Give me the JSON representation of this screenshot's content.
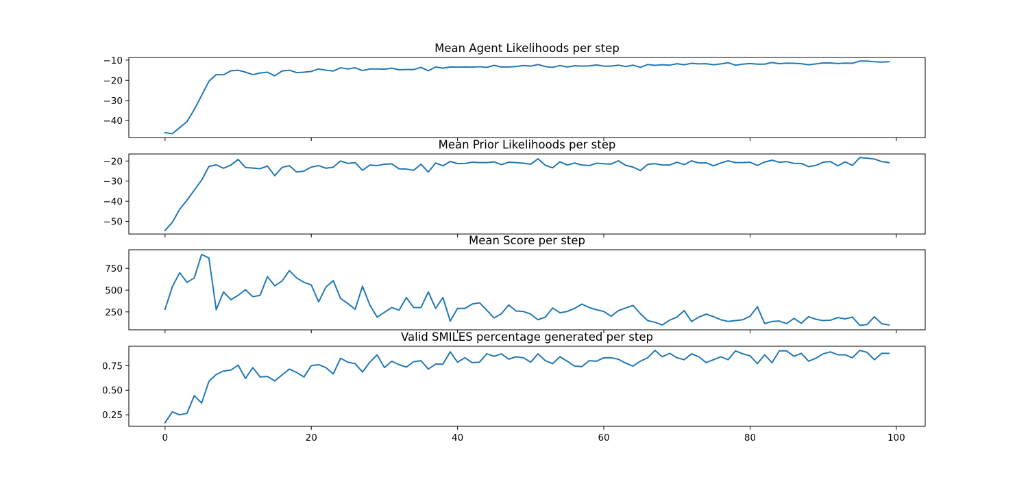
{
  "chart_data": [
    {
      "type": "line",
      "title": "Mean Agent Likelihoods per step",
      "color": "#1f77b4",
      "x": [
        0,
        1,
        2,
        3,
        4,
        5,
        6,
        7,
        8,
        9,
        10,
        11,
        12,
        13,
        14,
        15,
        16,
        17,
        18,
        19,
        20,
        21,
        22,
        23,
        24,
        25,
        26,
        27,
        28,
        29,
        30,
        31,
        32,
        33,
        34,
        35,
        36,
        37,
        38,
        39,
        40,
        41,
        42,
        43,
        44,
        45,
        46,
        47,
        48,
        49,
        50,
        51,
        52,
        53,
        54,
        55,
        56,
        57,
        58,
        59,
        60,
        61,
        62,
        63,
        64,
        65,
        66,
        67,
        68,
        69,
        70,
        71,
        72,
        73,
        74,
        75,
        76,
        77,
        78,
        79,
        80,
        81,
        82,
        83,
        84,
        85,
        86,
        87,
        88,
        89,
        90,
        91,
        92,
        93,
        94,
        95,
        96,
        97,
        98,
        99
      ],
      "values": [
        -46,
        -46.5,
        -43.5,
        -40.5,
        -34.5,
        -27.5,
        -20.5,
        -17.2,
        -17.3,
        -15.3,
        -15,
        -16,
        -17.2,
        -16.4,
        -16,
        -17.8,
        -15.4,
        -15,
        -16.2,
        -16,
        -15.6,
        -14.4,
        -15,
        -15.4,
        -13.8,
        -14.4,
        -13.8,
        -15.2,
        -14.4,
        -14.4,
        -14.5,
        -14,
        -14.8,
        -14.7,
        -14.7,
        -13.6,
        -15.3,
        -13.4,
        -14,
        -13.4,
        -13.5,
        -13.4,
        -13.5,
        -13.3,
        -13.6,
        -12.6,
        -13.4,
        -13.4,
        -13.2,
        -12.7,
        -13,
        -12.2,
        -13.2,
        -13.6,
        -12.7,
        -13.4,
        -12.8,
        -13,
        -12.9,
        -12.4,
        -13,
        -13,
        -12.5,
        -13.2,
        -12.5,
        -13.6,
        -12.2,
        -12.6,
        -12.3,
        -12.5,
        -11.8,
        -12.3,
        -11.6,
        -11.9,
        -11.8,
        -12.3,
        -11.9,
        -11.3,
        -12.5,
        -12,
        -11.7,
        -12,
        -12,
        -11.2,
        -11.8,
        -11.5,
        -11.6,
        -11.8,
        -12.3,
        -11.9,
        -11.4,
        -11.4,
        -11.7,
        -11.5,
        -11.6,
        -10.5,
        -10.5,
        -10.8,
        -11,
        -10.8
      ],
      "xlim": [
        -4.95,
        103.95
      ],
      "xticks": [
        0,
        20,
        40,
        60,
        80,
        100
      ],
      "ylim": [
        -48.4,
        -8.7
      ],
      "yticks": [
        {
          "value": -40,
          "label": "−40"
        },
        {
          "value": -30,
          "label": "−30"
        },
        {
          "value": -20,
          "label": "−20"
        },
        {
          "value": -10,
          "label": "−10"
        }
      ]
    },
    {
      "type": "line",
      "title": "Mean Prior Likelihoods per step",
      "color": "#1f77b4",
      "x": [
        0,
        1,
        2,
        3,
        4,
        5,
        6,
        7,
        8,
        9,
        10,
        11,
        12,
        13,
        14,
        15,
        16,
        17,
        18,
        19,
        20,
        21,
        22,
        23,
        24,
        25,
        26,
        27,
        28,
        29,
        30,
        31,
        32,
        33,
        34,
        35,
        36,
        37,
        38,
        39,
        40,
        41,
        42,
        43,
        44,
        45,
        46,
        47,
        48,
        49,
        50,
        51,
        52,
        53,
        54,
        55,
        56,
        57,
        58,
        59,
        60,
        61,
        62,
        63,
        64,
        65,
        66,
        67,
        68,
        69,
        70,
        71,
        72,
        73,
        74,
        75,
        76,
        77,
        78,
        79,
        80,
        81,
        82,
        83,
        84,
        85,
        86,
        87,
        88,
        89,
        90,
        91,
        92,
        93,
        94,
        95,
        96,
        97,
        98,
        99
      ],
      "values": [
        -54.5,
        -50.5,
        -44,
        -39.5,
        -34.5,
        -29.5,
        -22.7,
        -21.9,
        -23.6,
        -22,
        -19.2,
        -23.2,
        -23.5,
        -23.8,
        -22.5,
        -27.3,
        -23.2,
        -22.3,
        -25.5,
        -25,
        -23,
        -22.3,
        -23.6,
        -23.1,
        -20,
        -21.2,
        -20.8,
        -24.6,
        -22,
        -22.3,
        -21.6,
        -21.4,
        -23.9,
        -24,
        -24.6,
        -21.6,
        -25.5,
        -21,
        -22.4,
        -20.2,
        -21.3,
        -21.2,
        -20.6,
        -20.8,
        -20.8,
        -20.4,
        -21.8,
        -20.6,
        -20.8,
        -21.1,
        -21.6,
        -18.9,
        -22.1,
        -23.4,
        -20.4,
        -22,
        -21,
        -22,
        -22.3,
        -21.1,
        -21.4,
        -21.5,
        -19.9,
        -22.2,
        -23,
        -24.8,
        -21.7,
        -21.3,
        -22,
        -22,
        -20.6,
        -21.8,
        -19.9,
        -21,
        -20.9,
        -22.4,
        -21,
        -19.9,
        -20.8,
        -20.8,
        -20.6,
        -22.2,
        -20.5,
        -19.6,
        -20.6,
        -20.3,
        -21.2,
        -21.2,
        -22.8,
        -22.2,
        -20.6,
        -20.3,
        -22.4,
        -20.4,
        -22.2,
        -18.3,
        -18.6,
        -19,
        -20.3,
        -20.8
      ],
      "xlim": [
        -4.95,
        103.95
      ],
      "xticks": [
        0,
        20,
        40,
        60,
        80,
        100
      ],
      "ylim": [
        -56.3,
        -16.5
      ],
      "yticks": [
        {
          "value": -50,
          "label": "−50"
        },
        {
          "value": -40,
          "label": "−40"
        },
        {
          "value": -30,
          "label": "−30"
        },
        {
          "value": -20,
          "label": "−20"
        }
      ]
    },
    {
      "type": "line",
      "title": "Mean Score per step",
      "color": "#1f77b4",
      "x": [
        0,
        1,
        2,
        3,
        4,
        5,
        6,
        7,
        8,
        9,
        10,
        11,
        12,
        13,
        14,
        15,
        16,
        17,
        18,
        19,
        20,
        21,
        22,
        23,
        24,
        25,
        26,
        27,
        28,
        29,
        30,
        31,
        32,
        33,
        34,
        35,
        36,
        37,
        38,
        39,
        40,
        41,
        42,
        43,
        44,
        45,
        46,
        47,
        48,
        49,
        50,
        51,
        52,
        53,
        54,
        55,
        56,
        57,
        58,
        59,
        60,
        61,
        62,
        63,
        64,
        65,
        66,
        67,
        68,
        69,
        70,
        71,
        72,
        73,
        74,
        75,
        76,
        77,
        78,
        79,
        80,
        81,
        82,
        83,
        84,
        85,
        86,
        87,
        88,
        89,
        90,
        91,
        92,
        93,
        94,
        95,
        96,
        97,
        98,
        99
      ],
      "values": [
        280,
        540,
        700,
        590,
        640,
        910,
        870,
        275,
        480,
        390,
        440,
        505,
        425,
        440,
        655,
        550,
        605,
        725,
        640,
        590,
        560,
        365,
        535,
        610,
        405,
        345,
        280,
        545,
        330,
        190,
        245,
        300,
        270,
        415,
        300,
        300,
        480,
        290,
        415,
        145,
        290,
        290,
        340,
        355,
        270,
        180,
        230,
        330,
        260,
        255,
        225,
        160,
        190,
        295,
        240,
        255,
        290,
        340,
        300,
        275,
        255,
        200,
        265,
        295,
        325,
        230,
        150,
        130,
        100,
        155,
        190,
        265,
        140,
        190,
        225,
        195,
        160,
        140,
        150,
        160,
        200,
        310,
        115,
        140,
        145,
        115,
        175,
        120,
        195,
        165,
        150,
        155,
        185,
        170,
        190,
        95,
        105,
        195,
        115,
        100
      ],
      "xlim": [
        -4.95,
        103.95
      ],
      "xticks": [
        0,
        20,
        40,
        60,
        80,
        100
      ],
      "ylim": [
        44,
        964
      ],
      "yticks": [
        250,
        500,
        750
      ]
    },
    {
      "type": "line",
      "title": "Valid SMILES percentage generated per step",
      "color": "#1f77b4",
      "x": [
        0,
        1,
        2,
        3,
        4,
        5,
        6,
        7,
        8,
        9,
        10,
        11,
        12,
        13,
        14,
        15,
        16,
        17,
        18,
        19,
        20,
        21,
        22,
        23,
        24,
        25,
        26,
        27,
        28,
        29,
        30,
        31,
        32,
        33,
        34,
        35,
        36,
        37,
        38,
        39,
        40,
        41,
        42,
        43,
        44,
        45,
        46,
        47,
        48,
        49,
        50,
        51,
        52,
        53,
        54,
        55,
        56,
        57,
        58,
        59,
        60,
        61,
        62,
        63,
        64,
        65,
        66,
        67,
        68,
        69,
        70,
        71,
        72,
        73,
        74,
        75,
        76,
        77,
        78,
        79,
        80,
        81,
        82,
        83,
        84,
        85,
        86,
        87,
        88,
        89,
        90,
        91,
        92,
        93,
        94,
        95,
        96,
        97,
        98,
        99
      ],
      "values": [
        0.17,
        0.28,
        0.25,
        0.265,
        0.445,
        0.37,
        0.59,
        0.66,
        0.695,
        0.705,
        0.755,
        0.62,
        0.73,
        0.635,
        0.64,
        0.595,
        0.655,
        0.715,
        0.68,
        0.635,
        0.75,
        0.76,
        0.73,
        0.665,
        0.825,
        0.785,
        0.77,
        0.685,
        0.785,
        0.86,
        0.73,
        0.795,
        0.76,
        0.735,
        0.79,
        0.8,
        0.715,
        0.765,
        0.765,
        0.89,
        0.785,
        0.83,
        0.78,
        0.785,
        0.87,
        0.845,
        0.87,
        0.815,
        0.84,
        0.83,
        0.785,
        0.87,
        0.8,
        0.77,
        0.84,
        0.795,
        0.745,
        0.74,
        0.8,
        0.795,
        0.83,
        0.83,
        0.815,
        0.775,
        0.745,
        0.795,
        0.83,
        0.905,
        0.84,
        0.875,
        0.83,
        0.81,
        0.87,
        0.84,
        0.78,
        0.81,
        0.84,
        0.81,
        0.9,
        0.87,
        0.85,
        0.77,
        0.86,
        0.78,
        0.9,
        0.9,
        0.845,
        0.875,
        0.795,
        0.825,
        0.87,
        0.89,
        0.86,
        0.86,
        0.83,
        0.905,
        0.885,
        0.81,
        0.875,
        0.875
      ],
      "xlim": [
        -4.95,
        103.95
      ],
      "xticks": [
        0,
        20,
        40,
        60,
        80,
        100
      ],
      "ylim": [
        0.133,
        0.947
      ],
      "yticks": [
        0.25,
        {
          "value": 0.5,
          "label": "0.50"
        },
        0.75
      ]
    }
  ]
}
